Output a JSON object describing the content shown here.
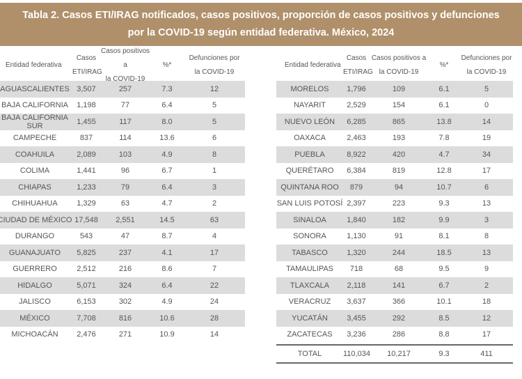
{
  "title": {
    "line1": "Tabla 2. Casos ETI/IRAG notificados, casos positivos, proporción de casos positivos  y defunciones",
    "line2": "por la COVID-19 según entidad federativa. México, 2024"
  },
  "columns": {
    "entidad": "Entidad federativa",
    "casos_1": "Casos",
    "casos_2": "ETI/IRAG",
    "positivos_1": "Casos positivos a",
    "positivos_2": "la COVID-19",
    "pct": "%*",
    "def_1": "Defunciones por",
    "def_2": "la COVID-19"
  },
  "colors": {
    "banner": "#b0906a",
    "row_shade": "#dcdcdc"
  },
  "left_rows": [
    [
      "AGUASCALIENTES",
      "3,507",
      "257",
      "7.3",
      "12"
    ],
    [
      "BAJA CALIFORNIA",
      "1,198",
      "77",
      "6.4",
      "5"
    ],
    [
      "BAJA CALIFORNIA SUR",
      "1,455",
      "117",
      "8.0",
      "5"
    ],
    [
      "CAMPECHE",
      "837",
      "114",
      "13.6",
      "6"
    ],
    [
      "COAHUILA",
      "2,089",
      "103",
      "4.9",
      "8"
    ],
    [
      "COLIMA",
      "1,441",
      "96",
      "6.7",
      "1"
    ],
    [
      "CHIAPAS",
      "1,233",
      "79",
      "6.4",
      "3"
    ],
    [
      "CHIHUAHUA",
      "1,329",
      "63",
      "4.7",
      "2"
    ],
    [
      "CIUDAD DE MÉXICO",
      "17,548",
      "2,551",
      "14.5",
      "63"
    ],
    [
      "DURANGO",
      "543",
      "47",
      "8.7",
      "4"
    ],
    [
      "GUANAJUATO",
      "5,825",
      "237",
      "4.1",
      "17"
    ],
    [
      "GUERRERO",
      "2,512",
      "216",
      "8.6",
      "7"
    ],
    [
      "HIDALGO",
      "5,071",
      "324",
      "6.4",
      "22"
    ],
    [
      "JALISCO",
      "6,153",
      "302",
      "4.9",
      "24"
    ],
    [
      "MÉXICO",
      "7,708",
      "816",
      "10.6",
      "28"
    ],
    [
      "MICHOACÁN",
      "2,476",
      "271",
      "10.9",
      "14"
    ]
  ],
  "right_rows": [
    [
      "MORELOS",
      "1,796",
      "109",
      "6.1",
      "5"
    ],
    [
      "NAYARIT",
      "2,529",
      "154",
      "6.1",
      "0"
    ],
    [
      "NUEVO LEÓN",
      "6,285",
      "865",
      "13.8",
      "14"
    ],
    [
      "OAXACA",
      "2,463",
      "193",
      "7.8",
      "19"
    ],
    [
      "PUEBLA",
      "8,922",
      "420",
      "4.7",
      "34"
    ],
    [
      "QUERÉTARO",
      "6,384",
      "819",
      "12.8",
      "17"
    ],
    [
      "QUINTANA ROO",
      "879",
      "94",
      "10.7",
      "6"
    ],
    [
      "SAN LUIS POTOSÍ",
      "2,397",
      "223",
      "9.3",
      "13"
    ],
    [
      "SINALOA",
      "1,840",
      "182",
      "9.9",
      "3"
    ],
    [
      "SONORA",
      "1,130",
      "91",
      "8.1",
      "8"
    ],
    [
      "TABASCO",
      "1,320",
      "244",
      "18.5",
      "13"
    ],
    [
      "TAMAULIPAS",
      "718",
      "68",
      "9.5",
      "9"
    ],
    [
      "TLAXCALA",
      "2,118",
      "141",
      "6.7",
      "2"
    ],
    [
      "VERACRUZ",
      "3,637",
      "366",
      "10.1",
      "18"
    ],
    [
      "YUCATÁN",
      "3,455",
      "292",
      "8.5",
      "12"
    ],
    [
      "ZACATECAS",
      "3,236",
      "286",
      "8.8",
      "17"
    ]
  ],
  "total": [
    "TOTAL",
    "110,034",
    "10,217",
    "9.3",
    "411"
  ]
}
